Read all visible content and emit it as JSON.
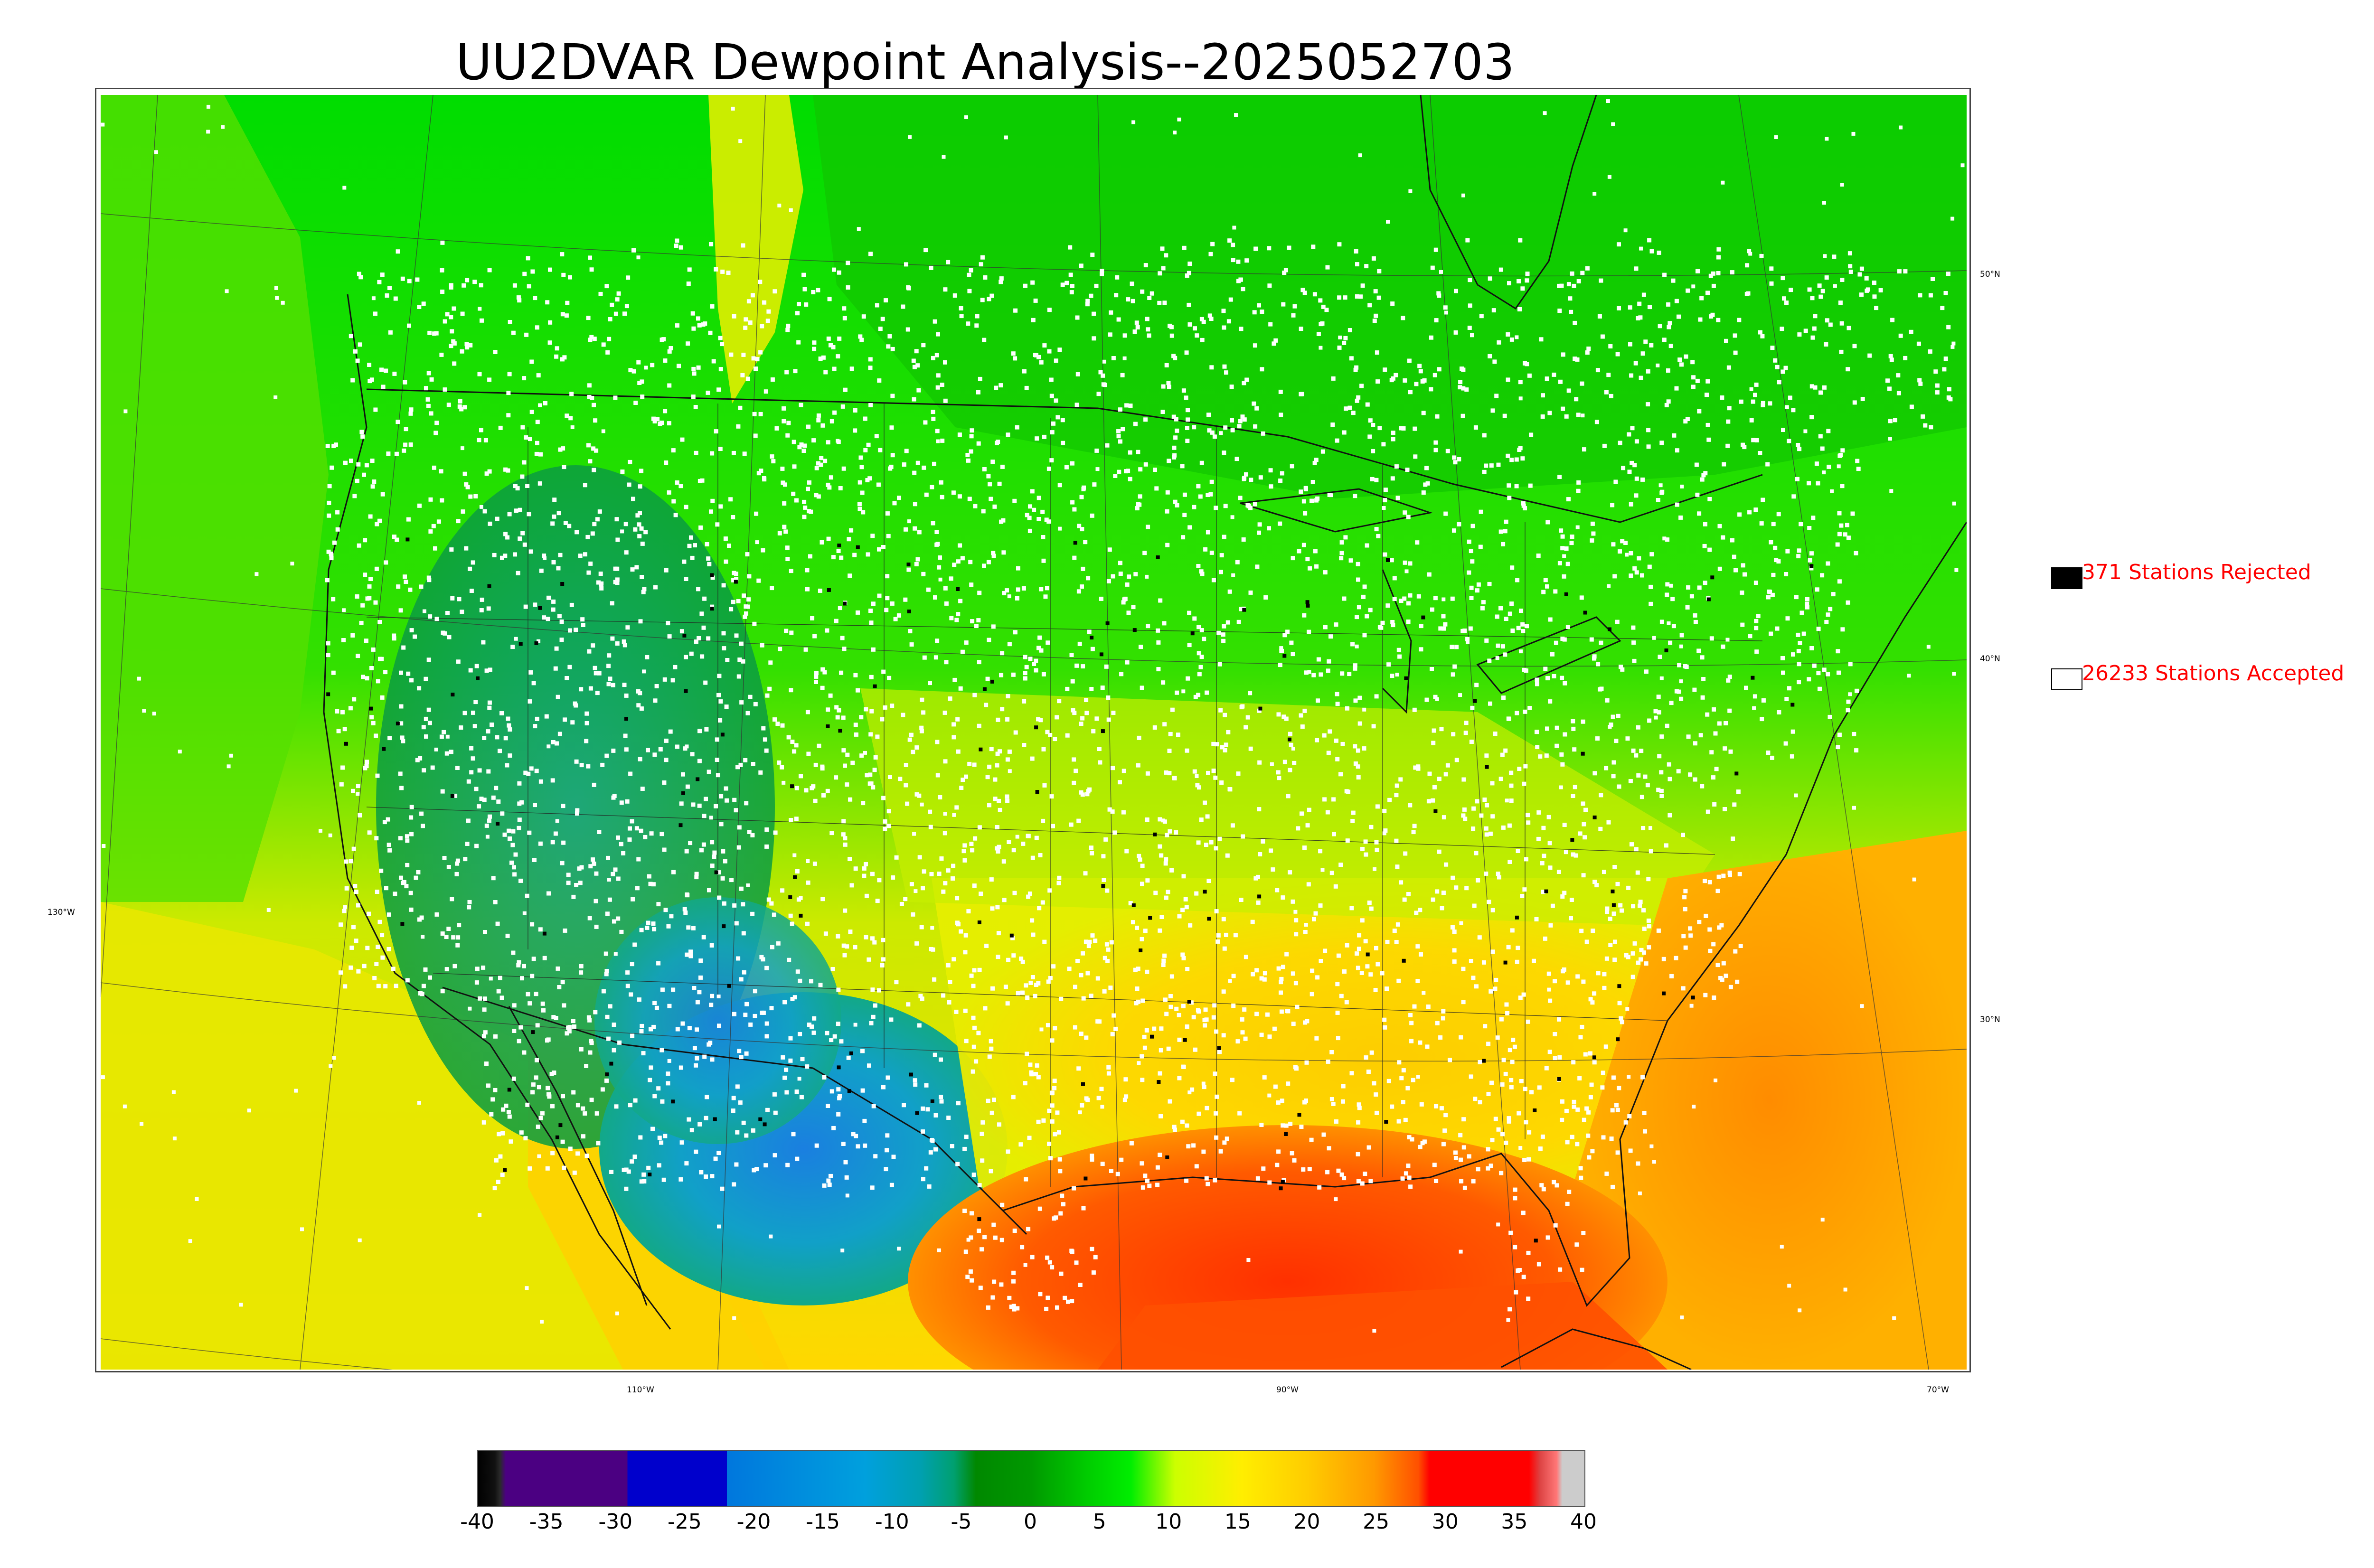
{
  "title": "UU2DVAR Dewpoint Analysis--2025052703",
  "legend": {
    "rejected_label": "371 Stations Rejected",
    "accepted_label": "26233 Stations Accepted",
    "rejected_color": "#000000",
    "accepted_color": "#ffffff",
    "text_color": "#ff0000"
  },
  "graticule": {
    "longitude_labels": [
      "110°W",
      "90°W",
      "70°W"
    ],
    "latitude_labels": [
      "50°N",
      "40°N",
      "30°N"
    ],
    "west_label": "130°W"
  },
  "colorbar": {
    "ticks": [
      "-40",
      "-35",
      "-30",
      "-25",
      "-20",
      "-15",
      "-10",
      "-5",
      "0",
      "5",
      "10",
      "15",
      "20",
      "25",
      "30",
      "35",
      "40"
    ],
    "range": [
      -40,
      40
    ],
    "units_shown": false
  },
  "field_colors": {
    "very_dry": "#0077cc",
    "dry": "#00a0a0",
    "cool": "#00a000",
    "mild": "#00e000",
    "moist": "#ddee00",
    "humid": "#ffc000",
    "very_humid": "#ff4000"
  }
}
